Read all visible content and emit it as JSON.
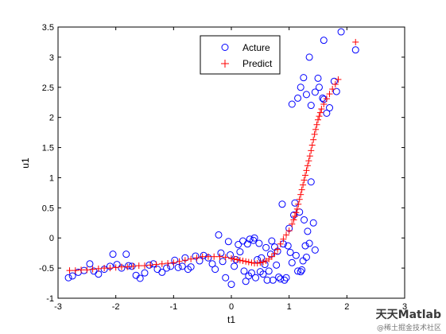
{
  "chart_data": {
    "type": "scatter",
    "xlabel": "t1",
    "ylabel": "u1",
    "xlim": [
      -3,
      3
    ],
    "ylim": [
      -1,
      3.5
    ],
    "xticks": [
      "-3",
      "-2",
      "-1",
      "0",
      "1",
      "2",
      "3"
    ],
    "yticks": [
      "-1",
      "-0.5",
      "0",
      "0.5",
      "1",
      "1.5",
      "2",
      "2.5",
      "3",
      "3.5"
    ],
    "legend_position": "top-center",
    "grid": false,
    "series": [
      {
        "name": "Acture",
        "marker": "circle",
        "color": "#0000ff",
        "points": [
          [
            -2.82,
            -0.66
          ],
          [
            -2.75,
            -0.63
          ],
          [
            -2.65,
            -0.57
          ],
          [
            -2.55,
            -0.54
          ],
          [
            -2.45,
            -0.43
          ],
          [
            -2.38,
            -0.55
          ],
          [
            -2.3,
            -0.6
          ],
          [
            -2.2,
            -0.52
          ],
          [
            -2.1,
            -0.47
          ],
          [
            -2.05,
            -0.27
          ],
          [
            -1.98,
            -0.44
          ],
          [
            -1.9,
            -0.5
          ],
          [
            -1.82,
            -0.27
          ],
          [
            -1.78,
            -0.46
          ],
          [
            -1.72,
            -0.47
          ],
          [
            -1.65,
            -0.62
          ],
          [
            -1.58,
            -0.67
          ],
          [
            -1.5,
            -0.58
          ],
          [
            -1.42,
            -0.45
          ],
          [
            -1.35,
            -0.43
          ],
          [
            -1.28,
            -0.52
          ],
          [
            -1.2,
            -0.57
          ],
          [
            -1.12,
            -0.5
          ],
          [
            -1.05,
            -0.47
          ],
          [
            -0.98,
            -0.37
          ],
          [
            -0.92,
            -0.49
          ],
          [
            -0.85,
            -0.47
          ],
          [
            -0.8,
            -0.33
          ],
          [
            -0.75,
            -0.52
          ],
          [
            -0.7,
            -0.48
          ],
          [
            -0.62,
            -0.3
          ],
          [
            -0.55,
            -0.38
          ],
          [
            -0.48,
            -0.29
          ],
          [
            -0.4,
            -0.33
          ],
          [
            -0.33,
            -0.43
          ],
          [
            -0.28,
            -0.52
          ],
          [
            -0.22,
            0.05
          ],
          [
            -0.18,
            -0.25
          ],
          [
            -0.15,
            -0.39
          ],
          [
            -0.1,
            -0.66
          ],
          [
            -0.05,
            -0.06
          ],
          [
            -0.02,
            -0.28
          ],
          [
            0.0,
            -0.77
          ],
          [
            0.05,
            -0.47
          ],
          [
            0.08,
            -0.36
          ],
          [
            0.12,
            -0.11
          ],
          [
            0.15,
            -0.23
          ],
          [
            0.2,
            -0.05
          ],
          [
            0.22,
            -0.55
          ],
          [
            0.25,
            -0.72
          ],
          [
            0.28,
            -0.1
          ],
          [
            0.3,
            -0.63
          ],
          [
            0.32,
            -0.02
          ],
          [
            0.35,
            -0.58
          ],
          [
            0.38,
            -0.04
          ],
          [
            0.4,
            0.0
          ],
          [
            0.42,
            -0.66
          ],
          [
            0.45,
            -0.36
          ],
          [
            0.48,
            -0.09
          ],
          [
            0.5,
            -0.56
          ],
          [
            0.52,
            -0.33
          ],
          [
            0.55,
            -0.6
          ],
          [
            0.58,
            -0.44
          ],
          [
            0.6,
            -0.16
          ],
          [
            0.62,
            -0.7
          ],
          [
            0.65,
            -0.55
          ],
          [
            0.68,
            -0.27
          ],
          [
            0.7,
            -0.05
          ],
          [
            0.72,
            -0.7
          ],
          [
            0.75,
            -0.15
          ],
          [
            0.78,
            -0.45
          ],
          [
            0.8,
            -0.22
          ],
          [
            0.82,
            -0.65
          ],
          [
            0.85,
            -0.68
          ],
          [
            0.88,
            0.56
          ],
          [
            0.9,
            -0.1
          ],
          [
            0.92,
            -0.7
          ],
          [
            0.95,
            -0.66
          ],
          [
            0.98,
            -0.13
          ],
          [
            1.0,
            0.16
          ],
          [
            1.02,
            -0.24
          ],
          [
            1.05,
            -0.41
          ],
          [
            1.08,
            0.38
          ],
          [
            1.1,
            0.58
          ],
          [
            1.12,
            -0.29
          ],
          [
            1.15,
            -0.55
          ],
          [
            1.18,
            0.43
          ],
          [
            1.2,
            -0.56
          ],
          [
            1.22,
            -0.53
          ],
          [
            1.24,
            -0.38
          ],
          [
            1.26,
            0.3
          ],
          [
            1.28,
            -0.13
          ],
          [
            1.3,
            -0.32
          ],
          [
            1.32,
            0.11
          ],
          [
            1.35,
            -0.09
          ],
          [
            1.05,
            2.22
          ],
          [
            1.15,
            2.32
          ],
          [
            1.2,
            2.5
          ],
          [
            1.25,
            2.66
          ],
          [
            1.3,
            2.38
          ],
          [
            1.38,
            0.93
          ],
          [
            1.42,
            0.25
          ],
          [
            1.45,
            2.42
          ],
          [
            1.5,
            2.65
          ],
          [
            1.58,
            2.32
          ],
          [
            1.6,
            3.28
          ],
          [
            1.65,
            2.07
          ],
          [
            1.7,
            2.16
          ],
          [
            1.78,
            2.6
          ],
          [
            1.82,
            2.43
          ],
          [
            1.9,
            3.42
          ],
          [
            2.15,
            3.12
          ],
          [
            1.38,
            2.2
          ],
          [
            1.45,
            -0.2
          ],
          [
            1.52,
            2.5
          ],
          [
            1.6,
            2.3
          ],
          [
            1.35,
            3.0
          ]
        ]
      },
      {
        "name": "Predict",
        "marker": "plus",
        "color": "#ff0000",
        "points": [
          [
            -2.8,
            -0.54
          ],
          [
            -2.7,
            -0.54
          ],
          [
            -2.6,
            -0.53
          ],
          [
            -2.5,
            -0.53
          ],
          [
            -2.4,
            -0.52
          ],
          [
            -2.3,
            -0.51
          ],
          [
            -2.2,
            -0.5
          ],
          [
            -2.1,
            -0.5
          ],
          [
            -2.0,
            -0.49
          ],
          [
            -1.9,
            -0.48
          ],
          [
            -1.8,
            -0.48
          ],
          [
            -1.7,
            -0.47
          ],
          [
            -1.6,
            -0.46
          ],
          [
            -1.5,
            -0.46
          ],
          [
            -1.4,
            -0.45
          ],
          [
            -1.3,
            -0.44
          ],
          [
            -1.2,
            -0.43
          ],
          [
            -1.1,
            -0.42
          ],
          [
            -1.0,
            -0.41
          ],
          [
            -0.9,
            -0.39
          ],
          [
            -0.8,
            -0.37
          ],
          [
            -0.7,
            -0.35
          ],
          [
            -0.6,
            -0.33
          ],
          [
            -0.5,
            -0.31
          ],
          [
            -0.4,
            -0.31
          ],
          [
            -0.3,
            -0.31
          ],
          [
            -0.2,
            -0.31
          ],
          [
            -0.1,
            -0.32
          ],
          [
            0.0,
            -0.34
          ],
          [
            0.05,
            -0.35
          ],
          [
            0.1,
            -0.36
          ],
          [
            0.15,
            -0.37
          ],
          [
            0.2,
            -0.38
          ],
          [
            0.25,
            -0.39
          ],
          [
            0.3,
            -0.4
          ],
          [
            0.35,
            -0.41
          ],
          [
            0.4,
            -0.42
          ],
          [
            0.45,
            -0.42
          ],
          [
            0.5,
            -0.41
          ],
          [
            0.55,
            -0.4
          ],
          [
            0.6,
            -0.38
          ],
          [
            0.65,
            -0.35
          ],
          [
            0.7,
            -0.31
          ],
          [
            0.75,
            -0.26
          ],
          [
            0.8,
            -0.19
          ],
          [
            0.85,
            -0.1
          ],
          [
            0.9,
            -0.02
          ],
          [
            0.95,
            0.05
          ],
          [
            1.0,
            0.12
          ],
          [
            1.05,
            0.23
          ],
          [
            1.08,
            0.3
          ],
          [
            1.1,
            0.36
          ],
          [
            1.12,
            0.42
          ],
          [
            1.14,
            0.48
          ],
          [
            1.16,
            0.56
          ],
          [
            1.18,
            0.64
          ],
          [
            1.2,
            0.72
          ],
          [
            1.22,
            0.8
          ],
          [
            1.24,
            0.88
          ],
          [
            1.26,
            0.96
          ],
          [
            1.28,
            1.04
          ],
          [
            1.3,
            1.12
          ],
          [
            1.32,
            1.2
          ],
          [
            1.34,
            1.28
          ],
          [
            1.36,
            1.36
          ],
          [
            1.38,
            1.45
          ],
          [
            1.4,
            1.54
          ],
          [
            1.42,
            1.63
          ],
          [
            1.44,
            1.72
          ],
          [
            1.46,
            1.8
          ],
          [
            1.48,
            1.88
          ],
          [
            1.5,
            1.96
          ],
          [
            1.52,
            2.02
          ],
          [
            1.54,
            2.08
          ],
          [
            1.56,
            2.14
          ],
          [
            1.6,
            2.22
          ],
          [
            1.65,
            2.31
          ],
          [
            1.7,
            2.39
          ],
          [
            1.75,
            2.47
          ],
          [
            1.8,
            2.55
          ],
          [
            1.85,
            2.63
          ],
          [
            2.15,
            3.25
          ]
        ]
      }
    ]
  },
  "watermark": {
    "line1": "天天Matlab",
    "line2": "@稀土掘金技术社区"
  }
}
